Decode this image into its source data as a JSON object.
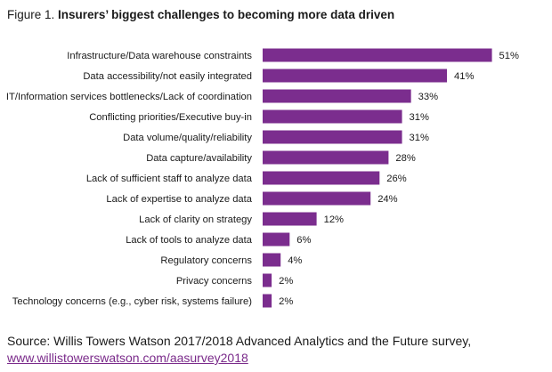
{
  "figure": {
    "prefix": "Figure 1.",
    "title": "Insurers’ biggest challenges to becoming more data driven"
  },
  "chart_data": {
    "type": "bar",
    "orientation": "horizontal",
    "title": "Insurers’ biggest challenges to becoming more data driven",
    "categories": [
      "Infrastructure/Data warehouse constraints",
      "Data accessibility/not easily integrated",
      "IT/Information services bottlenecks/Lack of coordination",
      "Conflicting priorities/Executive buy-in",
      "Data volume/quality/reliability",
      "Data capture/availability",
      "Lack of sufficient staff to analyze data",
      "Lack of expertise to analyze data",
      "Lack of clarity on strategy",
      "Lack of tools to analyze data",
      "Regulatory concerns",
      "Privacy concerns",
      "Technology concerns (e.g., cyber risk, systems failure)"
    ],
    "values": [
      51,
      41,
      33,
      31,
      31,
      28,
      26,
      24,
      12,
      6,
      4,
      2,
      2
    ],
    "value_labels": [
      "51%",
      "41%",
      "33%",
      "31%",
      "31%",
      "28%",
      "26%",
      "24%",
      "12%",
      "6%",
      "4%",
      "2%",
      "2%"
    ],
    "unit": "%",
    "bar_color": "#7b2d8e",
    "grid": false,
    "legend": "none"
  },
  "source": {
    "text": "Source: Willis Towers Watson 2017/2018 Advanced Analytics and the Future survey,",
    "link": "www.willistowerswatson.com/aasurvey2018"
  }
}
